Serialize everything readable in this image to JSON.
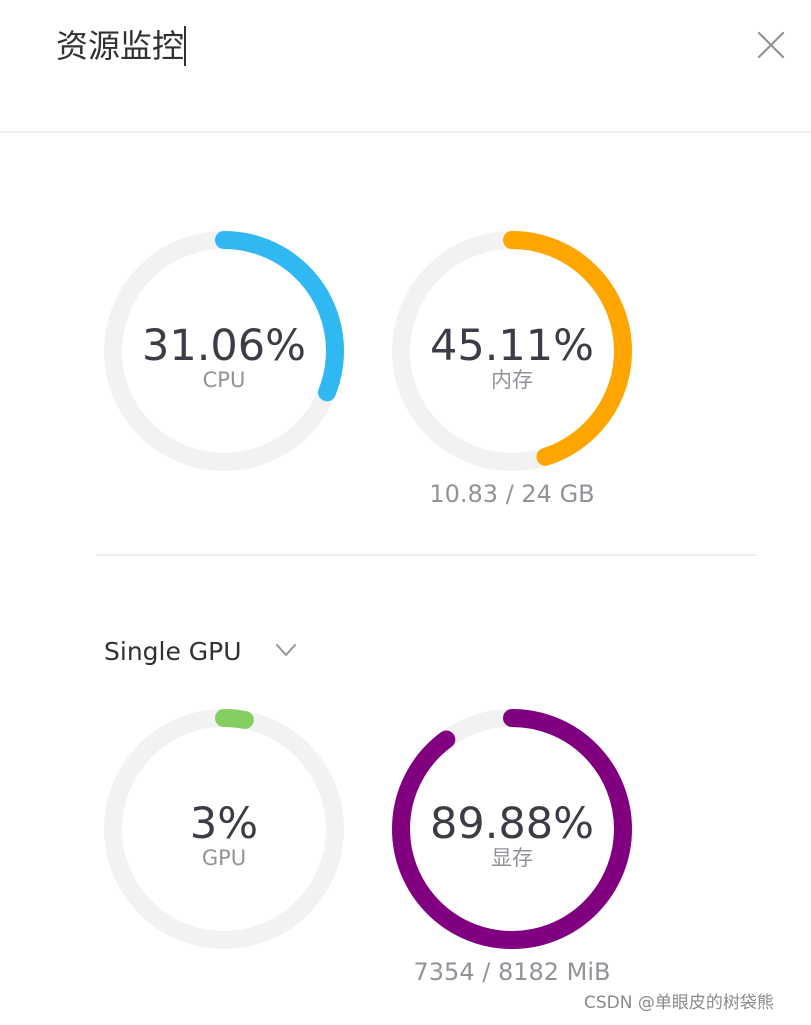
{
  "header": {
    "title": "资源监控",
    "close_icon": "close-icon"
  },
  "system": {
    "cpu": {
      "value_text": "31.06%",
      "label": "CPU",
      "percent": 31.06,
      "color": "#30b8f2"
    },
    "memory": {
      "value_text": "45.11%",
      "label": "内存",
      "percent": 45.11,
      "color": "#ffa500",
      "usage": "10.83 / 24 GB"
    }
  },
  "gpu_select": {
    "selected": "Single GPU",
    "icon": "chevron-down-icon"
  },
  "gpu": {
    "util": {
      "value_text": "3%",
      "label": "GPU",
      "percent": 3,
      "color": "#85ce61"
    },
    "vram": {
      "value_text": "89.88%",
      "label": "显存",
      "percent": 89.88,
      "color": "#800080",
      "usage": "7354 / 8182 MiB"
    }
  },
  "track_color": "#f2f2f2",
  "watermark": "CSDN @单眼皮的树袋熊"
}
